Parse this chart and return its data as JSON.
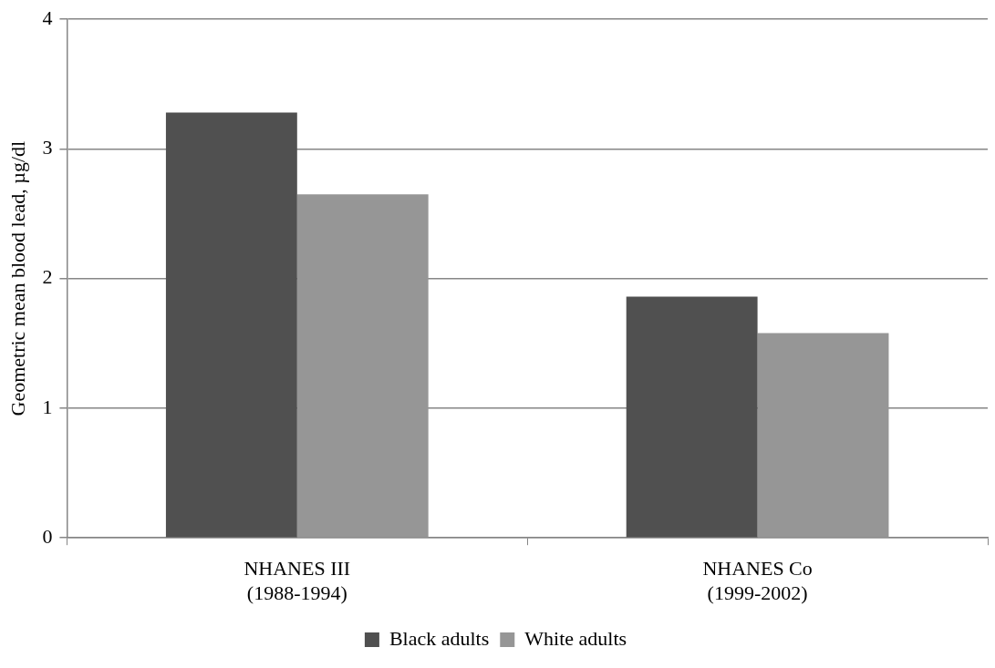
{
  "chart_data": {
    "type": "bar",
    "ylabel": "Geometric mean blood lead, µg/dl",
    "categories": [
      "NHANES III\n(1988-1994)",
      "NHANES Co\n(1999-2002)"
    ],
    "series": [
      {
        "name": "Black adults",
        "color": "#505050",
        "values": [
          3.28,
          1.86
        ]
      },
      {
        "name": "White adults",
        "color": "#969696",
        "values": [
          2.65,
          1.58
        ]
      }
    ],
    "ylim": [
      0,
      4
    ],
    "yticks": [
      0,
      1,
      2,
      3,
      4
    ],
    "grid": "y",
    "legend": "bottom"
  }
}
